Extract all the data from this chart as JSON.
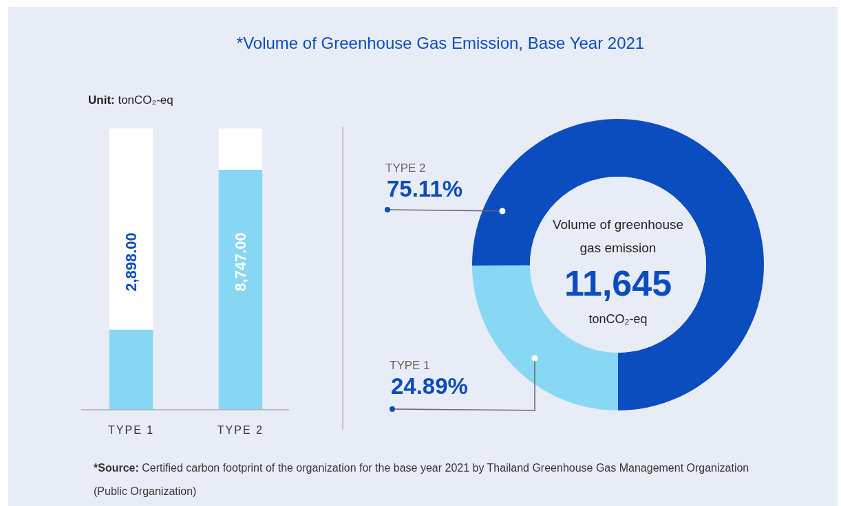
{
  "chart_data": [
    {
      "type": "bar",
      "title": "*Volume of Greenhouse Gas Emission, Base Year 2021",
      "categories": [
        "TYPE 1",
        "TYPE 2"
      ],
      "values": [
        2898,
        8747
      ],
      "value_labels": [
        "2,898.00",
        "8,747.00"
      ],
      "color": "#87d7f4",
      "annotations": [
        "Unit: tonCO₂-eq",
        "*Source: Certified carbon footprint of the organization for the base year 2021 by Thailand Greenhouse Gas Management Organization (Public Organization)"
      ]
    },
    {
      "type": "donut",
      "categories": [
        "TYPE 1",
        "TYPE 2"
      ],
      "values": [
        24.89,
        75.11
      ],
      "colors": [
        "#88d8f5",
        "#0b4cbe"
      ],
      "value_labels": [
        "24.89%",
        "75.11%"
      ],
      "annotations": [
        "Volume of greenhouse gas emission",
        "11,645",
        "tonCO₂-eq"
      ]
    }
  ]
}
